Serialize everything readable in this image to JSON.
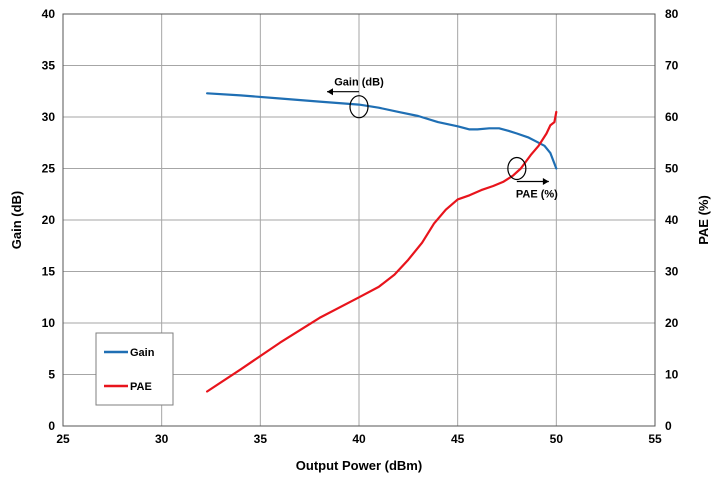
{
  "chart_data": {
    "type": "line",
    "xlabel": "Output Power (dBm)",
    "ylabel": "Gain (dB)",
    "y2label": "PAE (%)",
    "xlim": [
      25,
      55
    ],
    "ylim": [
      0,
      40
    ],
    "y2lim": [
      0,
      80
    ],
    "x_ticks": [
      "25",
      "30",
      "35",
      "40",
      "45",
      "50",
      "55"
    ],
    "y_ticks": [
      "0",
      "5",
      "10",
      "15",
      "20",
      "25",
      "30",
      "35",
      "40"
    ],
    "y2_ticks": [
      "0",
      "10",
      "20",
      "30",
      "40",
      "50",
      "60",
      "70",
      "80"
    ],
    "grid": true,
    "legend_position": "bottom-left",
    "series": [
      {
        "name": "Gain",
        "axis": "left",
        "color": "#1f6fb4",
        "x": [
          32.3,
          34,
          36,
          38,
          40,
          41,
          42,
          43,
          44,
          45,
          45.6,
          46,
          46.6,
          47.1,
          47.5,
          48,
          48.6,
          49,
          49.4,
          49.7,
          50
        ],
        "y": [
          32.3,
          32.1,
          31.8,
          31.5,
          31.2,
          30.9,
          30.5,
          30.1,
          29.5,
          29.1,
          28.8,
          28.8,
          28.9,
          28.9,
          28.7,
          28.4,
          28.0,
          27.6,
          27.2,
          26.5,
          25.0
        ]
      },
      {
        "name": "PAE",
        "axis": "right",
        "color": "#e8141c",
        "x": [
          32.3,
          34,
          36,
          38,
          40,
          41,
          41.8,
          42.5,
          43.2,
          43.8,
          44.4,
          45,
          45.6,
          46.2,
          46.8,
          47.3,
          47.8,
          48.2,
          48.7,
          49.1,
          49.5,
          49.7,
          49.9,
          50
        ],
        "y": [
          6.7,
          11.0,
          16.2,
          21.0,
          25.0,
          27.0,
          29.4,
          32.3,
          35.6,
          39.3,
          42.0,
          44.0,
          44.8,
          45.8,
          46.6,
          47.4,
          48.6,
          50.0,
          52.6,
          54.4,
          56.8,
          58.4,
          59.0,
          61.0
        ]
      }
    ],
    "annotations": [
      {
        "text": "Gain (dB)",
        "x": 40,
        "y": 31.0,
        "arrow": "left"
      },
      {
        "text": "PAE (%)",
        "x": 48,
        "y": 50.0,
        "arrow": "right"
      }
    ]
  }
}
